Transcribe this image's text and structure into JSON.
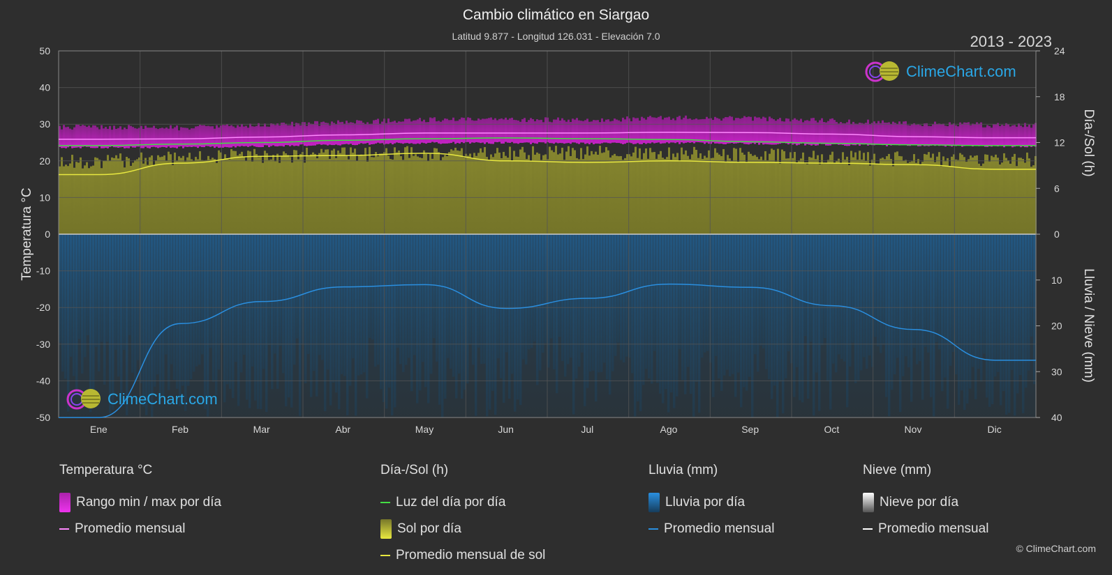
{
  "header": {
    "title": "Cambio climático en Siargao",
    "subtitle": "Latitud 9.877 - Longitud 126.031 - Elevación 7.0",
    "years": "2013 - 2023"
  },
  "logo_text": "ClimeChart.com",
  "copyright": "© ClimeChart.com",
  "colors": {
    "background": "#2e2e2e",
    "temp_range": "#cc22cc",
    "temp_avg": "#ff88ff",
    "daylight": "#44dd44",
    "sun_fill": "#8a8a30",
    "sun_avg": "#e8e840",
    "rain_fill": "#1a5a8a",
    "rain_avg": "#2a8fe0",
    "snow_avg": "#ffffff"
  },
  "legend": {
    "temperature": {
      "title": "Temperatura °C",
      "range_label": "Rango min / max por día",
      "avg_label": "Promedio mensual"
    },
    "daysun": {
      "title": "Día-/Sol (h)",
      "daylight_label": "Luz del día por día",
      "sun_label": "Sol por día",
      "sun_avg_label": "Promedio mensual de sol"
    },
    "rain": {
      "title": "Lluvia (mm)",
      "rain_label": "Lluvia por día",
      "avg_label": "Promedio mensual"
    },
    "snow": {
      "title": "Nieve (mm)",
      "snow_label": "Nieve por día",
      "avg_label": "Promedio mensual"
    }
  },
  "chart_data": {
    "type": "line",
    "categories": [
      "Ene",
      "Feb",
      "Mar",
      "Abr",
      "May",
      "Jun",
      "Jul",
      "Ago",
      "Sep",
      "Oct",
      "Nov",
      "Dic"
    ],
    "left_axis": {
      "label": "Temperatura °C",
      "range": [
        -50,
        50
      ],
      "ticks": [
        50,
        40,
        30,
        20,
        10,
        0,
        -10,
        -20,
        -30,
        -40,
        -50
      ]
    },
    "right_axis_top": {
      "label": "Día-/Sol (h)",
      "range": [
        0,
        24
      ],
      "ticks": [
        24,
        18,
        12,
        6,
        0
      ]
    },
    "right_axis_bottom": {
      "label": "Lluvia / Nieve (mm)",
      "range": [
        0,
        40
      ],
      "ticks": [
        10,
        20,
        30,
        40
      ]
    },
    "series": [
      {
        "name": "Rango min / max por día",
        "unit": "°C",
        "min": [
          24.0,
          24.0,
          24.3,
          24.8,
          25.2,
          25.2,
          25.0,
          25.2,
          25.0,
          24.7,
          24.5,
          24.3
        ],
        "max": [
          28.5,
          28.3,
          29.0,
          29.8,
          30.5,
          30.5,
          30.5,
          31.0,
          30.8,
          30.2,
          29.5,
          29.0
        ]
      },
      {
        "name": "Promedio mensual",
        "unit": "°C",
        "values": [
          25.9,
          26.0,
          26.5,
          27.1,
          27.6,
          27.6,
          27.6,
          27.8,
          27.7,
          27.3,
          26.6,
          26.3
        ]
      },
      {
        "name": "Luz del día por día",
        "unit": "h",
        "values": [
          11.6,
          11.8,
          12.0,
          12.3,
          12.5,
          12.6,
          12.5,
          12.4,
          12.1,
          11.9,
          11.7,
          11.6
        ]
      },
      {
        "name": "Sol por día",
        "unit": "h",
        "values": [
          10.5,
          11.0,
          11.3,
          11.4,
          11.6,
          11.6,
          11.6,
          11.6,
          11.4,
          11.0,
          10.8,
          10.7
        ]
      },
      {
        "name": "Promedio mensual de sol",
        "unit": "h",
        "values": [
          7.8,
          9.3,
          10.2,
          10.3,
          10.6,
          9.6,
          9.4,
          9.6,
          9.4,
          9.3,
          9.1,
          8.5
        ]
      },
      {
        "name": "Lluvia por día",
        "unit": "mm",
        "values": [
          40.0,
          19.5,
          14.7,
          11.5,
          11.0,
          16.2,
          14.0,
          10.9,
          11.6,
          15.6,
          20.8,
          27.5
        ]
      },
      {
        "name": "Promedio mensual",
        "unit": "mm",
        "values": [
          40.0,
          19.5,
          14.7,
          11.5,
          11.0,
          16.2,
          14.0,
          10.9,
          11.6,
          15.6,
          20.8,
          27.5
        ]
      }
    ],
    "grid": true
  }
}
